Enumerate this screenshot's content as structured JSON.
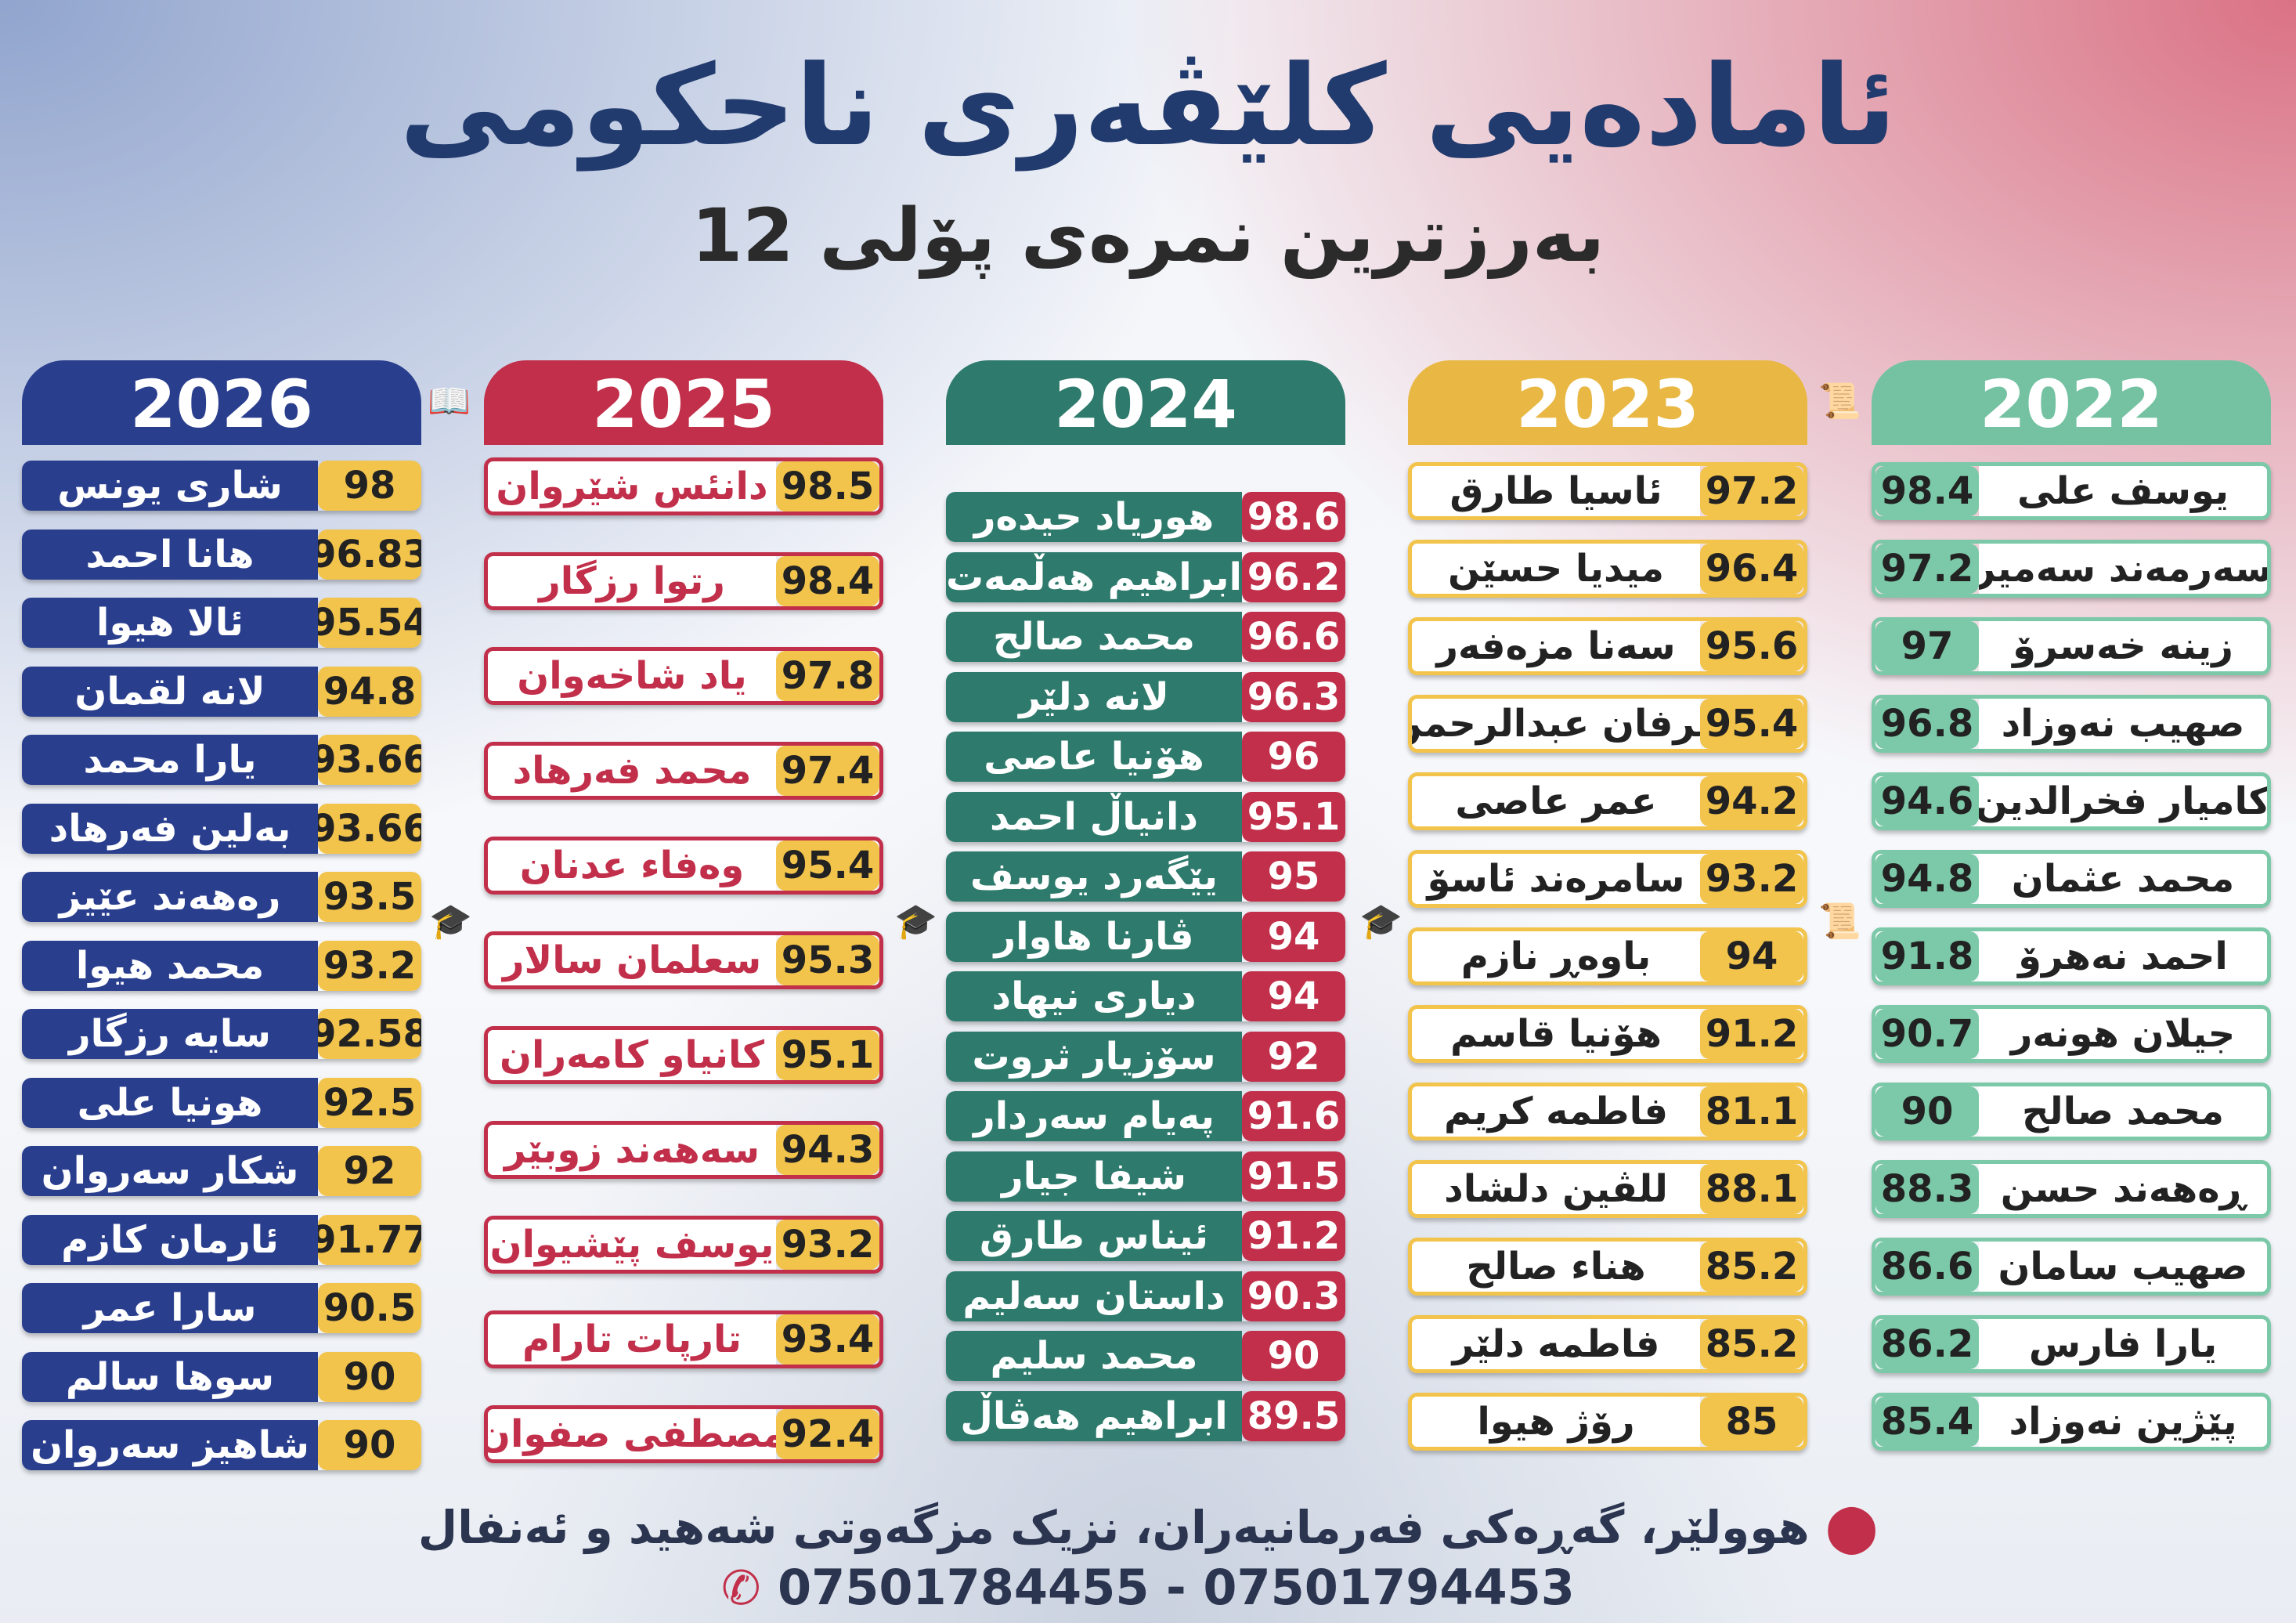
{
  "header": {
    "title": "ئامادەیی کلێڤەری ناحکومی",
    "subtitle": "بەرزترین نمرەی پۆلی 12"
  },
  "columns": [
    {
      "year": "2026",
      "rows": [
        {
          "name": "شاری یونس",
          "score": "98"
        },
        {
          "name": "هانا احمد",
          "score": "96.83"
        },
        {
          "name": "ئالا هیوا",
          "score": "95.54"
        },
        {
          "name": "لانە لقمان",
          "score": "94.8"
        },
        {
          "name": "یارا محمد",
          "score": "93.66"
        },
        {
          "name": "بەلین فەرهاد",
          "score": "93.66"
        },
        {
          "name": "رەهەند عێیز",
          "score": "93.5"
        },
        {
          "name": "محمد هیوا",
          "score": "93.2"
        },
        {
          "name": "سایە رزگار",
          "score": "92.58"
        },
        {
          "name": "هونیا علی",
          "score": "92.5"
        },
        {
          "name": "شکار سەروان",
          "score": "92"
        },
        {
          "name": "ئارمان کازم",
          "score": "91.77"
        },
        {
          "name": "سارا عمر",
          "score": "90.5"
        },
        {
          "name": "سوها سالم",
          "score": "90"
        },
        {
          "name": "شاهیز سەروان",
          "score": "90"
        }
      ]
    },
    {
      "year": "2025",
      "rows": [
        {
          "name": "دانئس شێروان",
          "score": "98.5"
        },
        {
          "name": "رتوا رزگار",
          "score": "98.4"
        },
        {
          "name": "یاد شاخەوان",
          "score": "97.8"
        },
        {
          "name": "محمد فەرهاد",
          "score": "97.4"
        },
        {
          "name": "وەفاء عدنان",
          "score": "95.4"
        },
        {
          "name": "سعلمان سالار",
          "score": "95.3"
        },
        {
          "name": "کانیاو کامەران",
          "score": "95.1"
        },
        {
          "name": "سەهەند زوبێر",
          "score": "94.3"
        },
        {
          "name": "یوسف پێشیوان",
          "score": "93.2"
        },
        {
          "name": "تارپات تارام",
          "score": "93.4"
        },
        {
          "name": "مصطفی صفوان",
          "score": "92.4"
        }
      ]
    },
    {
      "year": "2024",
      "rows": [
        {
          "name": "هوریاد حیدەر",
          "score": "98.6"
        },
        {
          "name": "ابراهیم هەڵمەت",
          "score": "96.2"
        },
        {
          "name": "محمد صالح",
          "score": "96.6"
        },
        {
          "name": "لانە دلێر",
          "score": "96.3"
        },
        {
          "name": "هۆنیا عاصی",
          "score": "96"
        },
        {
          "name": "دانیاڵ احمد",
          "score": "95.1"
        },
        {
          "name": "یێگەرد یوسف",
          "score": "95"
        },
        {
          "name": "ڤارنا هاوار",
          "score": "94"
        },
        {
          "name": "دیاری نیهاد",
          "score": "94"
        },
        {
          "name": "سۆزیار ثروت",
          "score": "92"
        },
        {
          "name": "پەیام سەردار",
          "score": "91.6"
        },
        {
          "name": "شیفا جیار",
          "score": "91.5"
        },
        {
          "name": "ئیناس طارق",
          "score": "91.2"
        },
        {
          "name": "داستان سەلیم",
          "score": "90.3"
        },
        {
          "name": "محمد سلیم",
          "score": "90"
        },
        {
          "name": "ابراهیم هەڤاڵ",
          "score": "89.5"
        }
      ]
    },
    {
      "year": "2023",
      "rows": [
        {
          "name": "ئاسیا طارق",
          "score": "97.2"
        },
        {
          "name": "میدیا حسێن",
          "score": "96.4"
        },
        {
          "name": "سەنا مزەفەر",
          "score": "95.6"
        },
        {
          "name": "عرفان عبدالرحمن",
          "score": "95.4"
        },
        {
          "name": "عمر عاصی",
          "score": "94.2"
        },
        {
          "name": "سامرەند ئاسۆ",
          "score": "93.2"
        },
        {
          "name": "باوەڕ نازم",
          "score": "94"
        },
        {
          "name": "هۆنیا قاسم",
          "score": "91.2"
        },
        {
          "name": "فاطمە کریم",
          "score": "81.1"
        },
        {
          "name": "للڤین دلشاد",
          "score": "88.1"
        },
        {
          "name": "هناء صالح",
          "score": "85.2"
        },
        {
          "name": "فاطمە دلێر",
          "score": "85.2"
        },
        {
          "name": "رۆژ هیوا",
          "score": "85"
        }
      ]
    },
    {
      "year": "2022",
      "rows": [
        {
          "name": "یوسف علی",
          "score": "98.4"
        },
        {
          "name": "سەرمەند سەمیر",
          "score": "97.2"
        },
        {
          "name": "زینە خەسرۆ",
          "score": "97"
        },
        {
          "name": "صهیب نەوزاد",
          "score": "96.8"
        },
        {
          "name": "کامیار فخرالدین",
          "score": "94.6"
        },
        {
          "name": "محمد عثمان",
          "score": "94.8"
        },
        {
          "name": "احمد نەهرۆ",
          "score": "91.8"
        },
        {
          "name": "جیلان هونەر",
          "score": "90.7"
        },
        {
          "name": "محمد صالح",
          "score": "90"
        },
        {
          "name": "ڕەهەند حسن",
          "score": "88.3"
        },
        {
          "name": "صهیب سامان",
          "score": "86.6"
        },
        {
          "name": "یارا فارس",
          "score": "86.2"
        },
        {
          "name": "پێژین نەوزاد",
          "score": "85.4"
        }
      ]
    }
  ],
  "footer": {
    "address": "هوولێر، گەڕەکی فەرمانیەران، نزیک مزگەوتی شەهید و ئەنفال",
    "phones": "07501784455 - 07501794453"
  },
  "colors": {
    "navy": "#2a3e8e",
    "crimson": "#c22f4a",
    "teal": "#2e7a6c",
    "gold": "#f2c44c",
    "mint": "#7bc9a8"
  },
  "icons": [
    "book-icon",
    "graduation-cap-icon",
    "certificate-icon",
    "location-pin-icon",
    "phone-icon"
  ]
}
